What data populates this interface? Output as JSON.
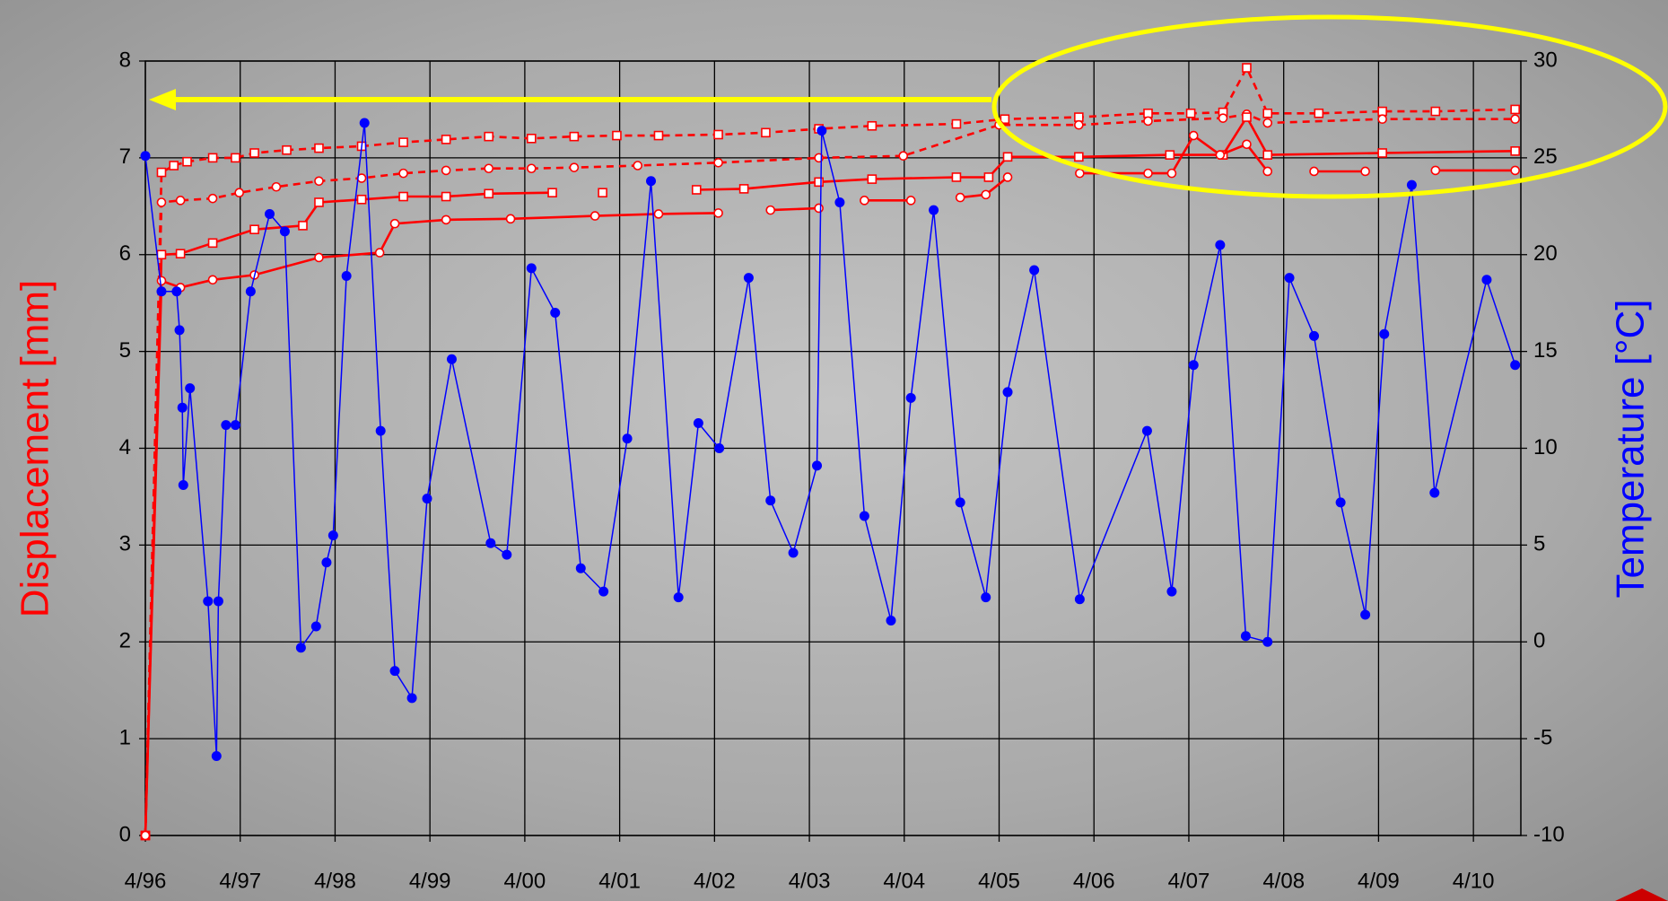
{
  "chart_data": {
    "type": "line",
    "y_label": "Displacement [mm]",
    "y2_label": "Temperature [°C]",
    "xlim": [
      1996.25,
      2010.75
    ],
    "xticks": [
      {
        "value": 1996.25,
        "label": "4/96"
      },
      {
        "value": 1997.25,
        "label": "4/97"
      },
      {
        "value": 1998.25,
        "label": "4/98"
      },
      {
        "value": 1999.25,
        "label": "4/99"
      },
      {
        "value": 2000.25,
        "label": "4/00"
      },
      {
        "value": 2001.25,
        "label": "4/01"
      },
      {
        "value": 2002.25,
        "label": "4/02"
      },
      {
        "value": 2003.25,
        "label": "4/03"
      },
      {
        "value": 2004.25,
        "label": "4/04"
      },
      {
        "value": 2005.25,
        "label": "4/05"
      },
      {
        "value": 2006.25,
        "label": "4/06"
      },
      {
        "value": 2007.25,
        "label": "4/07"
      },
      {
        "value": 2008.25,
        "label": "4/08"
      },
      {
        "value": 2009.25,
        "label": "4/09"
      },
      {
        "value": 2010.25,
        "label": "4/10"
      }
    ],
    "ylim": [
      0,
      8
    ],
    "yticks": [
      0,
      1,
      2,
      3,
      4,
      5,
      6,
      7,
      8
    ],
    "y2lim": [
      -10,
      30
    ],
    "y2ticks": [
      -10,
      -5,
      0,
      5,
      10,
      15,
      20,
      25,
      30
    ],
    "grid": true,
    "y_label_color": "#ff0000",
    "y2_label_color": "#0000ff",
    "series": [
      {
        "color": "#ff0000",
        "marker": "square",
        "dashed": true,
        "x": [
          1996.25,
          1996.42,
          1996.55,
          1996.69,
          1996.96,
          1997.2,
          1997.4,
          1997.74,
          1998.08,
          1998.53,
          1998.97,
          1999.42,
          1999.87,
          2000.32,
          2000.77,
          2001.22,
          2001.66,
          2002.29,
          2002.79,
          2003.35,
          2003.91,
          2004.8,
          2005.31,
          2006.09,
          2006.82,
          2007.27,
          2007.61,
          2007.86,
          2008.08,
          2008.62,
          2009.29,
          2009.85,
          2010.69
        ],
        "values": [
          0,
          6.85,
          6.92,
          6.96,
          7.0,
          7.0,
          7.05,
          7.08,
          7.1,
          7.12,
          7.16,
          7.19,
          7.22,
          7.2,
          7.22,
          7.23,
          7.23,
          7.24,
          7.26,
          7.3,
          7.33,
          7.35,
          7.4,
          7.42,
          7.46,
          7.46,
          7.47,
          7.93,
          7.46,
          7.46,
          7.48,
          7.48,
          7.5
        ]
      },
      {
        "color": "#ff0000",
        "marker": "circle",
        "dashed": true,
        "x": [
          1996.25,
          1996.42,
          1996.62,
          1996.96,
          1997.24,
          1997.63,
          1998.08,
          1998.53,
          1998.97,
          1999.42,
          1999.87,
          2000.32,
          2000.77,
          2001.44,
          2002.29,
          2003.35,
          2004.24,
          2005.25,
          2006.09,
          2006.82,
          2007.61,
          2007.86,
          2008.08,
          2009.29,
          2010.69
        ],
        "values": [
          0,
          6.54,
          6.56,
          6.58,
          6.64,
          6.7,
          6.76,
          6.79,
          6.84,
          6.87,
          6.89,
          6.89,
          6.9,
          6.92,
          6.95,
          7.0,
          7.02,
          7.34,
          7.34,
          7.38,
          7.41,
          7.45,
          7.36,
          7.4,
          7.4
        ]
      },
      {
        "color": "#ff0000",
        "marker": "square",
        "dashed": false,
        "x": [
          1996.25,
          1996.42,
          1996.62,
          1996.96,
          1997.4,
          1997.91,
          1998.08,
          1998.53,
          1998.97,
          1999.42,
          1999.87,
          2000.54,
          2000.8,
          2001.07,
          2001.6,
          2002.06,
          2002.56,
          2003.35,
          2003.91,
          2004.8,
          2005.14,
          2005.34,
          2006.09,
          2007.05,
          2007.61,
          2007.86,
          2008.08,
          2009.29,
          2010.69
        ],
        "values": [
          0,
          6.0,
          6.01,
          6.12,
          6.26,
          6.3,
          6.54,
          6.57,
          6.6,
          6.6,
          6.63,
          6.64,
          null,
          6.64,
          null,
          6.67,
          6.68,
          6.75,
          6.78,
          6.8,
          6.8,
          7.01,
          7.01,
          7.03,
          7.03,
          7.42,
          7.03,
          7.05,
          7.07
        ]
      },
      {
        "color": "#ff0000",
        "marker": "circle",
        "dashed": false,
        "x": [
          1996.25,
          1996.42,
          1996.62,
          1996.96,
          1997.4,
          1998.08,
          1998.72,
          1998.88,
          1999.42,
          2000.1,
          2000.99,
          2001.66,
          2002.29,
          2002.55,
          2002.84,
          2003.35,
          2003.6,
          2003.83,
          2004.32,
          2004.6,
          2004.84,
          2005.11,
          2005.34,
          2005.7,
          2006.1,
          2006.82,
          2007.07,
          2007.3,
          2007.58,
          2007.86,
          2008.08,
          2008.3,
          2008.57,
          2009.11,
          2009.5,
          2009.85,
          2010.69
        ],
        "values": [
          0,
          5.73,
          5.66,
          5.74,
          5.79,
          5.97,
          6.02,
          6.32,
          6.36,
          6.37,
          6.4,
          6.42,
          6.43,
          null,
          6.46,
          6.48,
          null,
          6.56,
          6.56,
          null,
          6.59,
          6.62,
          6.8,
          null,
          6.84,
          6.84,
          6.84,
          7.23,
          7.03,
          7.14,
          6.86,
          null,
          6.86,
          6.86,
          null,
          6.87,
          6.87
        ]
      },
      {
        "color": "#0000ff",
        "marker": "dot",
        "dashed": false,
        "axis": "y2",
        "x": [
          1996.25,
          1996.42,
          1996.58,
          1996.61,
          1996.64,
          1996.65,
          1996.72,
          1996.91,
          1997.0,
          1997.02,
          1997.1,
          1997.2,
          1997.36,
          1997.56,
          1997.72,
          1997.89,
          1998.05,
          1998.16,
          1998.23,
          1998.37,
          1998.56,
          1998.73,
          1998.88,
          1999.06,
          1999.22,
          1999.48,
          1999.89,
          2000.06,
          2000.32,
          2000.57,
          2000.84,
          2001.08,
          2001.33,
          2001.58,
          2001.87,
          2002.08,
          2002.3,
          2002.61,
          2002.84,
          2003.08,
          2003.33,
          2003.38,
          2003.57,
          2003.83,
          2004.11,
          2004.32,
          2004.56,
          2004.84,
          2005.11,
          2005.34,
          2005.62,
          2006.1,
          2006.81,
          2007.07,
          2007.3,
          2007.58,
          2007.85,
          2008.08,
          2008.31,
          2008.57,
          2008.85,
          2009.11,
          2009.31,
          2009.6,
          2009.84,
          2010.39,
          2010.69
        ],
        "values": [
          25.1,
          18.1,
          18.1,
          16.1,
          12.1,
          8.1,
          13.1,
          2.1,
          -5.9,
          2.1,
          11.2,
          11.2,
          18.1,
          22.1,
          21.2,
          -0.3,
          0.8,
          4.1,
          5.5,
          18.9,
          26.8,
          10.9,
          -1.5,
          -2.9,
          7.4,
          14.6,
          5.1,
          4.5,
          19.3,
          17.0,
          3.8,
          2.6,
          10.5,
          23.8,
          2.3,
          11.3,
          10.0,
          18.8,
          7.3,
          4.6,
          9.1,
          26.4,
          22.7,
          6.5,
          1.1,
          12.6,
          22.3,
          7.2,
          2.3,
          12.9,
          19.2,
          2.2,
          10.9,
          2.6,
          14.3,
          20.5,
          0.3,
          0.0,
          18.8,
          15.8,
          7.2,
          1.4,
          15.9,
          23.6,
          7.7,
          18.7,
          14.3
        ]
      }
    ]
  }
}
